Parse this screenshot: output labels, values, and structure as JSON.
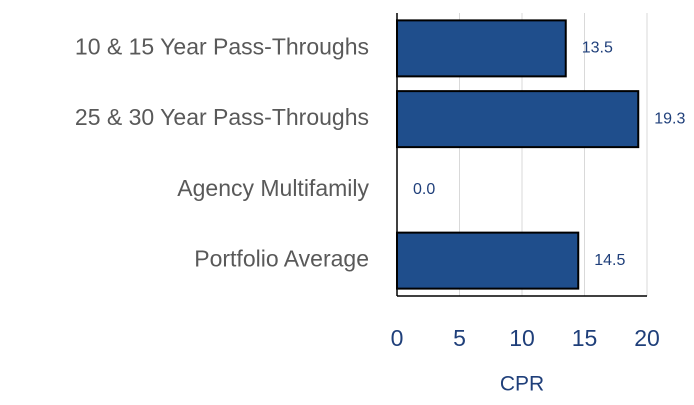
{
  "chart_data": {
    "type": "bar",
    "orientation": "horizontal",
    "x_label": "CPR",
    "categories": [
      "10 & 15 Year Pass-Throughs",
      "25 & 30 Year Pass-Throughs",
      "Agency Multifamily",
      "Portfolio Average"
    ],
    "values": [
      13.5,
      19.3,
      0,
      14.5
    ],
    "value_labels": [
      "13.5",
      "19.3",
      "0.0",
      "14.5"
    ],
    "color": "#1f4e8c",
    "xlim": [
      0,
      20
    ],
    "xticks": [
      0,
      5,
      10,
      15,
      20
    ],
    "grid": true
  }
}
